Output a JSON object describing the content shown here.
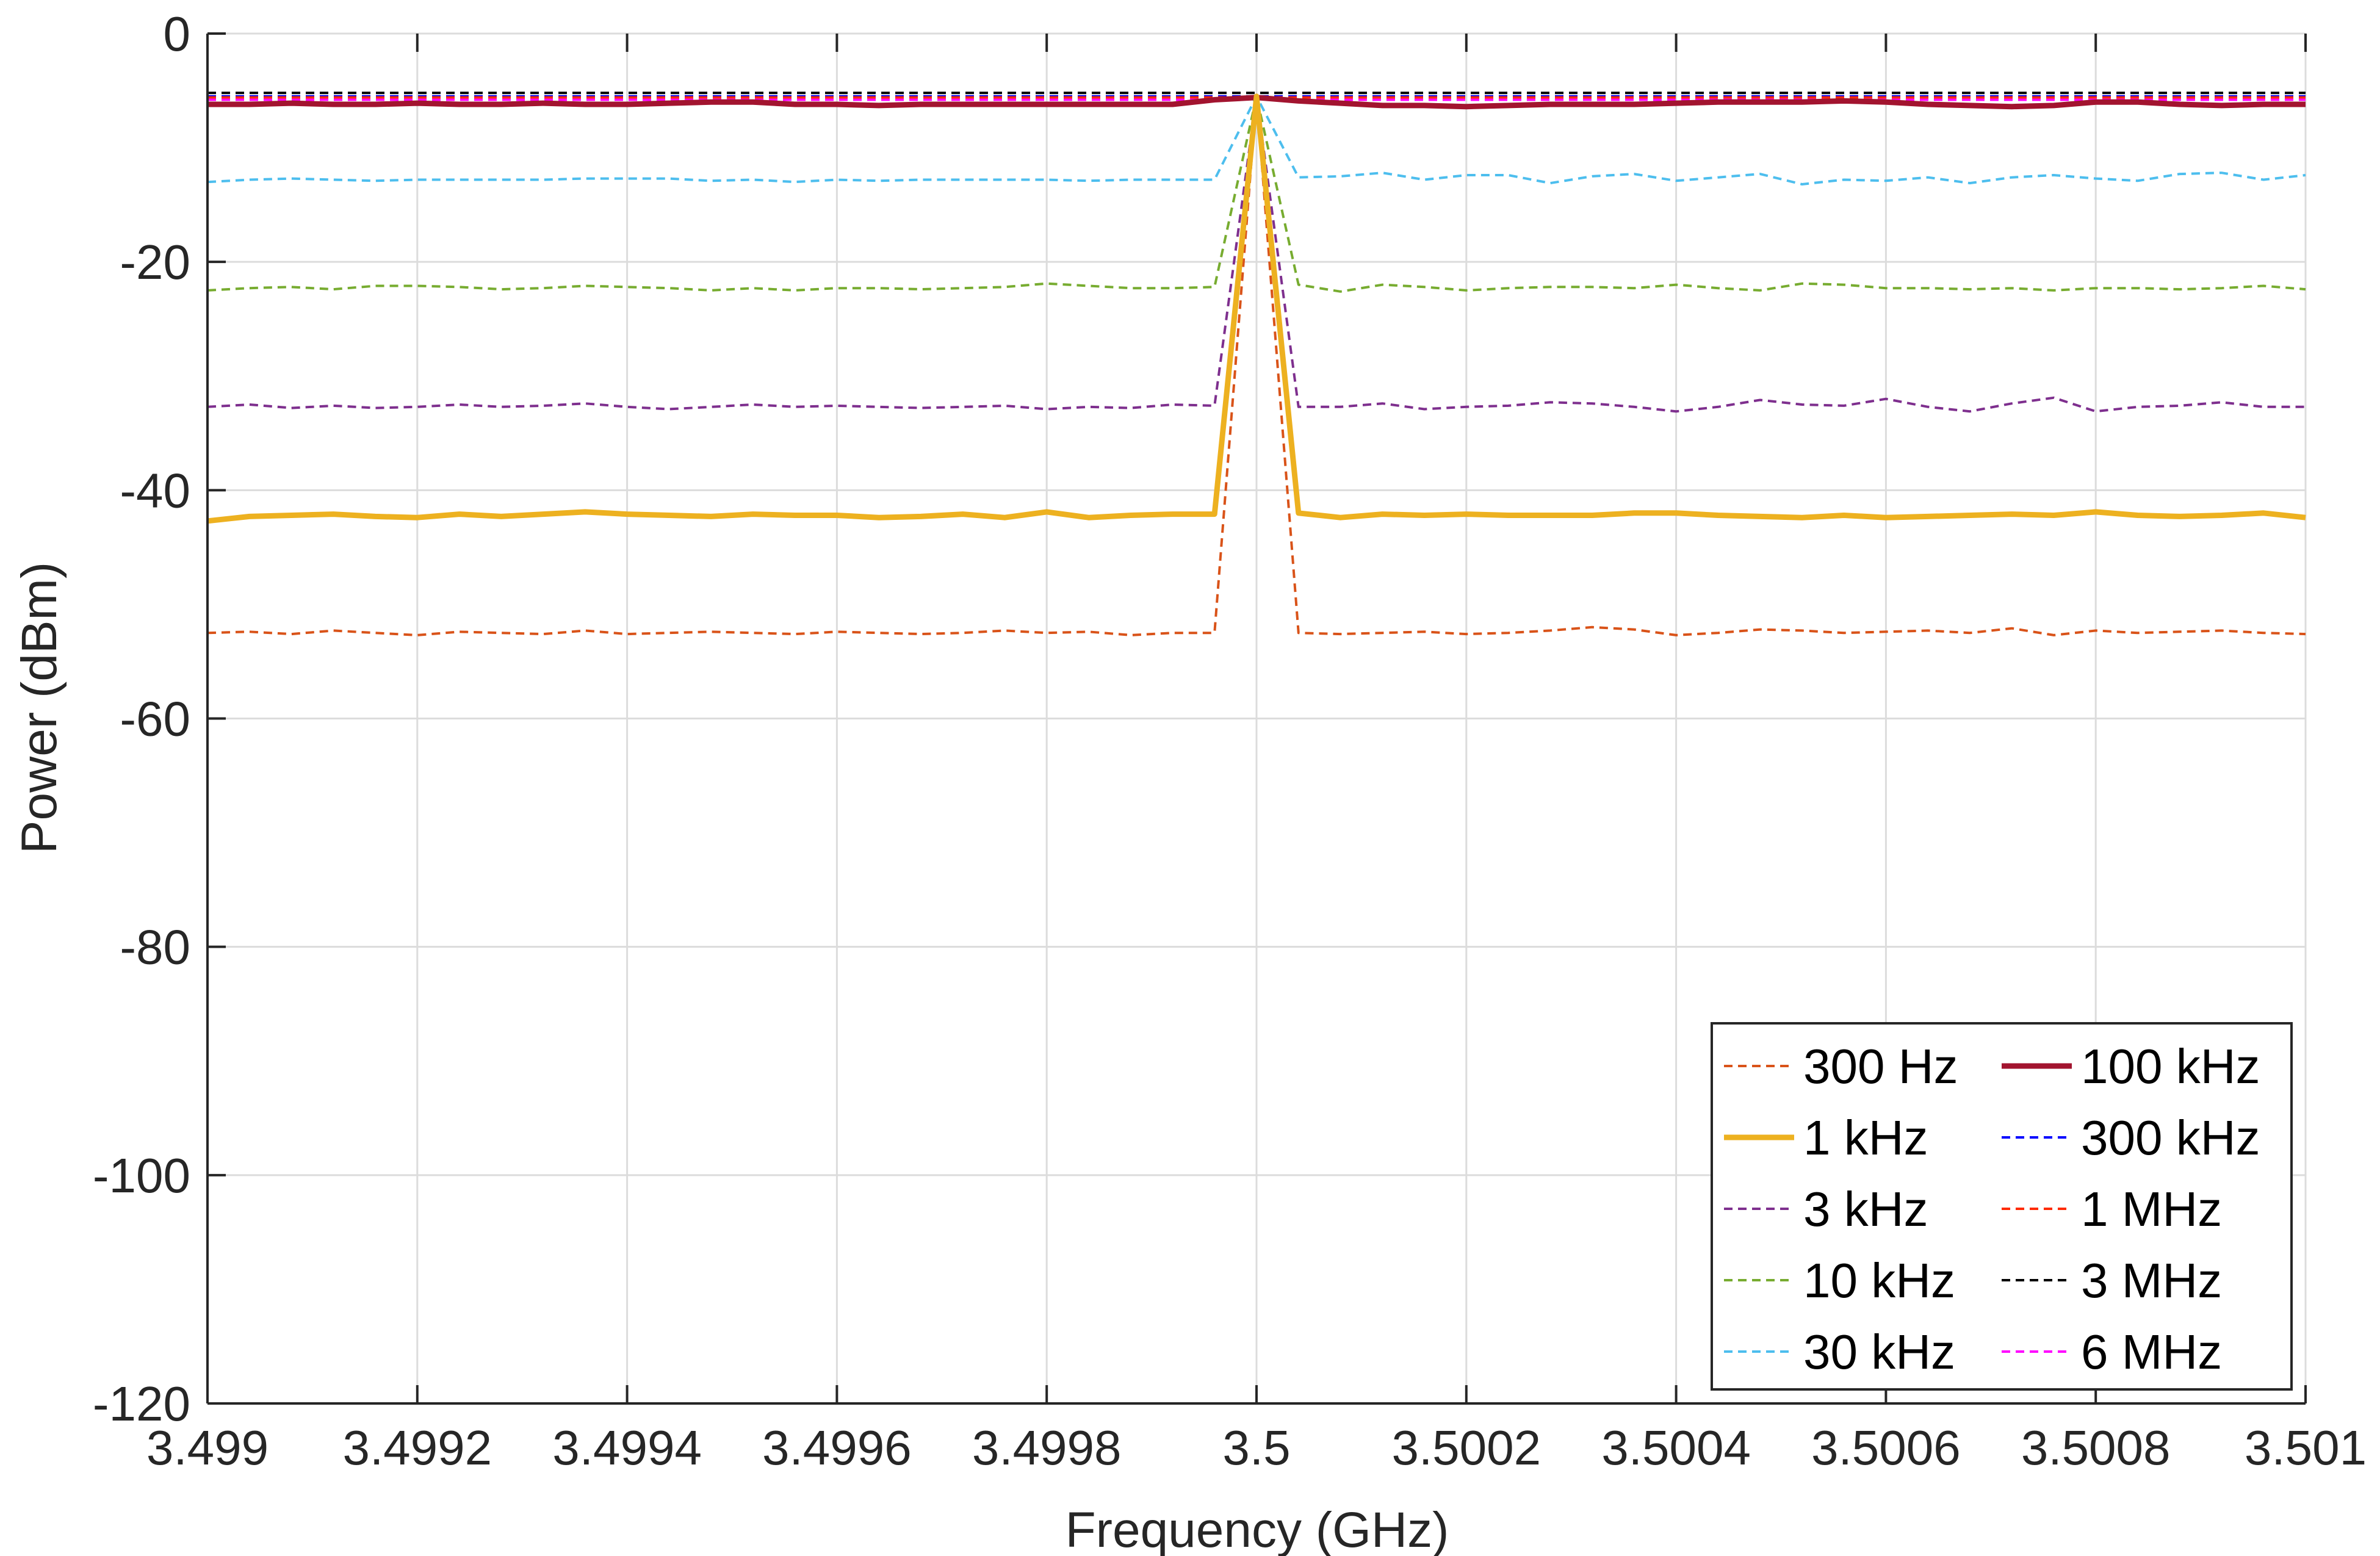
{
  "chart_data": {
    "type": "line",
    "title": "",
    "xlabel": "Frequency (GHz)",
    "ylabel": "Power (dBm)",
    "xlim": [
      3.499,
      3.501
    ],
    "ylim": [
      -120,
      0
    ],
    "x_ticks": [
      3.499,
      3.4992,
      3.4994,
      3.4996,
      3.4998,
      3.5,
      3.5002,
      3.5004,
      3.5006,
      3.5008,
      3.501
    ],
    "x_tick_labels": [
      "3.499",
      "3.4992",
      "3.4994",
      "3.4996",
      "3.4998",
      "3.5",
      "3.5002",
      "3.5004",
      "3.5006",
      "3.5008",
      "3.501"
    ],
    "y_ticks": [
      0,
      -20,
      -40,
      -60,
      -80,
      -100,
      -120
    ],
    "y_tick_labels": [
      "0",
      "-20",
      "-40",
      "-60",
      "-80",
      "-100",
      "-120"
    ],
    "grid": true,
    "legend_position": "bottom-right",
    "legend_columns": 2,
    "x_points": [
      3.499,
      3.49904,
      3.49908,
      3.49912,
      3.49916,
      3.4992,
      3.49924,
      3.49928,
      3.49932,
      3.49936,
      3.4994,
      3.49944,
      3.49948,
      3.49952,
      3.49956,
      3.4996,
      3.49964,
      3.49968,
      3.49972,
      3.49976,
      3.4998,
      3.49984,
      3.49988,
      3.49992,
      3.49996,
      3.5,
      3.50004,
      3.50008,
      3.50012,
      3.50016,
      3.5002,
      3.50024,
      3.50028,
      3.50032,
      3.50036,
      3.5004,
      3.50044,
      3.50048,
      3.50052,
      3.50056,
      3.5006,
      3.50064,
      3.50068,
      3.50072,
      3.50076,
      3.5008,
      3.50084,
      3.50088,
      3.50092,
      3.50096,
      3.501
    ],
    "series": [
      {
        "name": "300 Hz",
        "color": "#D95319",
        "style": "dashed",
        "width": "thin",
        "base": -52.5,
        "variation": [
          0,
          0.1,
          -0.1,
          0.2,
          0,
          -0.2,
          0.1,
          0,
          -0.1,
          0.2,
          -0.1,
          0,
          0.1,
          0,
          -0.1,
          0.1,
          0,
          -0.1,
          0,
          0.2,
          0,
          0.1,
          -0.2,
          0,
          0,
          0,
          0,
          -0.1,
          0,
          0.1,
          -0.1,
          0,
          0.2,
          0.5,
          0.3,
          -0.2,
          0,
          0.3,
          0.2,
          0,
          0.1,
          0.2,
          0,
          0.4,
          -0.2,
          0.2,
          0,
          0.1,
          0.2,
          0,
          -0.1
        ]
      },
      {
        "name": "1 kHz",
        "color": "#EDB120",
        "style": "solid",
        "width": "thick",
        "base": -42.2,
        "variation": [
          -0.5,
          -0.1,
          0,
          0.1,
          -0.1,
          -0.2,
          0.1,
          -0.1,
          0.1,
          0.3,
          0.1,
          0,
          -0.1,
          0.1,
          0,
          0,
          -0.2,
          -0.1,
          0.1,
          -0.2,
          0.3,
          -0.2,
          0,
          0.1,
          0.1,
          0,
          0.2,
          -0.2,
          0.1,
          0,
          0.1,
          0,
          0,
          0,
          0.2,
          0.2,
          0,
          -0.1,
          -0.2,
          0,
          -0.2,
          -0.1,
          0,
          0.1,
          0,
          0.3,
          0,
          -0.1,
          0,
          0.2,
          -0.2
        ]
      },
      {
        "name": "3 kHz",
        "color": "#7E2F8E",
        "style": "dashed",
        "width": "thin",
        "base": -32.7,
        "variation": [
          0,
          0.2,
          -0.1,
          0.1,
          -0.1,
          0,
          0.2,
          0,
          0.1,
          0.3,
          0,
          -0.2,
          0,
          0.2,
          0,
          0.1,
          0,
          -0.1,
          0,
          0.1,
          -0.2,
          0,
          -0.1,
          0.2,
          0.1,
          0,
          0,
          0,
          0.3,
          -0.2,
          0,
          0.1,
          0.4,
          0.3,
          0,
          -0.4,
          0,
          0.6,
          0.2,
          0.1,
          0.7,
          0,
          -0.4,
          0.3,
          0.8,
          -0.4,
          0,
          0.1,
          0.4,
          0,
          0
        ]
      },
      {
        "name": "10 kHz",
        "color": "#77AC30",
        "style": "dashed",
        "width": "thin",
        "base": -22.3,
        "variation": [
          -0.2,
          0,
          0.1,
          -0.1,
          0.2,
          0.2,
          0.1,
          -0.1,
          0,
          0.2,
          0.1,
          0,
          -0.2,
          0,
          -0.2,
          0,
          0,
          -0.1,
          0,
          0.1,
          0.4,
          0.2,
          0,
          0,
          0.1,
          0,
          0.3,
          -0.3,
          0.3,
          0.1,
          -0.2,
          0,
          0.1,
          0.1,
          0,
          0.3,
          0,
          -0.2,
          0.4,
          0.3,
          0,
          0,
          -0.1,
          0,
          -0.2,
          0,
          0,
          -0.1,
          0,
          0.2,
          -0.1
        ]
      },
      {
        "name": "30 kHz",
        "color": "#4DBEEE",
        "style": "dashed",
        "width": "thin",
        "base": -12.8,
        "variation": [
          -0.2,
          0,
          0.1,
          0,
          -0.1,
          0,
          0,
          0,
          0,
          0.1,
          0.1,
          0.1,
          -0.1,
          0,
          -0.2,
          0,
          -0.1,
          0,
          0,
          0,
          0,
          -0.1,
          0,
          0,
          0,
          0,
          0.2,
          0.3,
          0.6,
          0,
          0.4,
          0.4,
          -0.3,
          0.3,
          0.5,
          -0.1,
          0.2,
          0.5,
          -0.4,
          0,
          -0.1,
          0.2,
          -0.3,
          0.2,
          0.4,
          0.1,
          -0.1,
          0.5,
          0.6,
          0,
          0.4
        ]
      },
      {
        "name": "100 kHz",
        "color": "#A2142F",
        "style": "solid",
        "width": "thick",
        "base": -6.2,
        "variation": [
          0,
          0,
          0.1,
          0,
          0,
          0.1,
          0,
          0,
          0.1,
          0,
          0,
          0.1,
          0.2,
          0.2,
          0,
          0,
          -0.1,
          0,
          0,
          0,
          0,
          0,
          0,
          0,
          0.4,
          0.6,
          0.3,
          0.1,
          -0.1,
          -0.1,
          -0.2,
          -0.1,
          0,
          0,
          0,
          0.1,
          0.2,
          0.2,
          0.2,
          0.3,
          0.2,
          0,
          -0.1,
          -0.2,
          -0.1,
          0.2,
          0.2,
          0,
          -0.1,
          0,
          0
        ]
      },
      {
        "name": "300 kHz",
        "color": "#0000FF",
        "style": "dashed",
        "width": "thin",
        "base": -5.5
      },
      {
        "name": "1 MHz",
        "color": "#FF2A00",
        "style": "dashed",
        "width": "thin",
        "base": -5.6
      },
      {
        "name": "3 MHz",
        "color": "#000000",
        "style": "dashed",
        "width": "thin",
        "base": -5.2
      },
      {
        "name": "6 MHz",
        "color": "#FF00FF",
        "style": "dashed",
        "width": "thin",
        "base": -5.8
      }
    ],
    "peak": {
      "x": 3.5,
      "y": -5.5,
      "narrow_series": [
        "300 Hz",
        "1 kHz",
        "3 kHz",
        "10 kHz",
        "30 kHz"
      ]
    }
  }
}
